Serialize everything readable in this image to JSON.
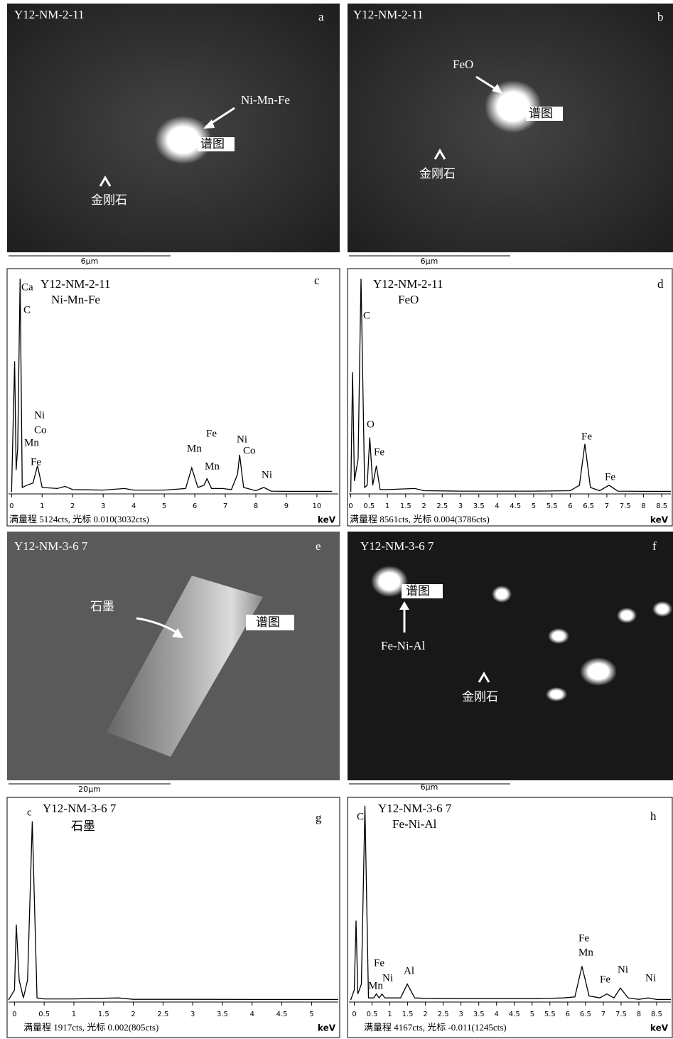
{
  "images": [
    {
      "sample": "Y12-NM-2-11",
      "letter": "a",
      "labels": [
        "Ni-Mn-Fe",
        "谱图",
        "金刚石"
      ],
      "scale": "6μm"
    },
    {
      "sample": "Y12-NM-2-11",
      "letter": "b",
      "labels": [
        "FeO",
        "谱图",
        "金刚石"
      ],
      "scale": "6μm"
    },
    {
      "sample": "Y12-NM-3-6 7",
      "letter": "e",
      "labels": [
        "石墨",
        "谱图"
      ],
      "scale": "20μm"
    },
    {
      "sample": "Y12-NM-3-6 7",
      "letter": "f",
      "labels": [
        "谱图",
        "Fe-Ni-Al",
        "金刚石"
      ],
      "scale": "6μm"
    }
  ],
  "chart_data": [
    {
      "type": "line",
      "sample": "Y12-NM-2-11",
      "phase": "Ni-Mn-Fe",
      "letter": "c",
      "color": "#000000",
      "x_label": "keV",
      "footer": "满量程 5124cts, 光标 0.010(3032cts)",
      "x": [
        0,
        0.05,
        0.1,
        0.15,
        0.2,
        0.28,
        0.35,
        0.5,
        0.7,
        0.85,
        1.0,
        1.5,
        1.75,
        2.0,
        3.0,
        3.7,
        4.0,
        5.0,
        5.7,
        5.9,
        6.1,
        6.3,
        6.4,
        6.55,
        6.9,
        7.2,
        7.4,
        7.47,
        7.6,
        8.0,
        8.26,
        8.5,
        9,
        10,
        10.5
      ],
      "values": [
        0,
        30,
        60,
        10,
        20,
        98,
        2,
        3,
        4,
        12,
        2,
        1.5,
        2.5,
        1,
        0.8,
        1.5,
        0.8,
        0.8,
        1.5,
        11,
        2,
        3,
        6,
        1.5,
        1.5,
        1,
        8,
        17,
        2,
        0.5,
        2,
        0.3,
        0.2,
        0.2,
        0.2
      ],
      "xlim": [
        -0.1,
        10.7
      ],
      "ylim": [
        0,
        100
      ],
      "xticks": [
        0,
        1,
        2,
        3,
        4,
        5,
        6,
        7,
        8,
        9,
        10
      ],
      "annotations": [
        "Ca",
        "C",
        "Ni",
        "Co",
        "Mn",
        "Fe",
        "Mn",
        "Fe",
        "Mn",
        "Ni",
        "Co",
        "Ni"
      ]
    },
    {
      "type": "line",
      "sample": "Y12-NM-2-11",
      "phase": "FeO",
      "letter": "d",
      "color": "#000000",
      "x_label": "keV",
      "footer": "满量程 8561cts, 光标 0.004(3786cts)",
      "x": [
        0,
        0.05,
        0.1,
        0.2,
        0.28,
        0.38,
        0.45,
        0.52,
        0.6,
        0.7,
        0.8,
        1.0,
        1.75,
        2,
        3,
        4,
        5,
        6,
        6.25,
        6.4,
        6.55,
        6.8,
        7.06,
        7.3,
        8,
        8.75
      ],
      "values": [
        0,
        55,
        5,
        15,
        98,
        2,
        3,
        25,
        3,
        12,
        1,
        1,
        1.5,
        0.5,
        0.3,
        0.3,
        0.3,
        0.5,
        3,
        22,
        2,
        0.5,
        3,
        0.3,
        0.2,
        0.2
      ],
      "xlim": [
        -0.05,
        8.75
      ],
      "ylim": [
        0,
        100
      ],
      "xticks": [
        0,
        0.5,
        1,
        1.5,
        2,
        2.5,
        3,
        3.5,
        4,
        4.5,
        5,
        5.5,
        6,
        6.5,
        7,
        7.5,
        8,
        8.5
      ],
      "annotations": [
        "C",
        "O",
        "Fe",
        "Fe",
        "Fe"
      ]
    },
    {
      "type": "line",
      "sample": "Y12-NM-3-6 7",
      "phase": "石墨",
      "letter": "g",
      "color": "#000000",
      "x_label": "keV",
      "footer": "满量程 1917cts, 光标 0.002(805cts)",
      "x": [
        -0.1,
        0,
        0.03,
        0.08,
        0.15,
        0.22,
        0.3,
        0.38,
        0.5,
        1,
        1.75,
        2,
        3,
        4,
        5,
        5.45
      ],
      "values": [
        0,
        5,
        38,
        10,
        1,
        10,
        90,
        1,
        0.5,
        0.5,
        1,
        0.3,
        0.3,
        0.2,
        0.2,
        0.2
      ],
      "xlim": [
        -0.1,
        5.45
      ],
      "ylim": [
        0,
        100
      ],
      "xticks": [
        0,
        0.5,
        1,
        1.5,
        2,
        2.5,
        3,
        3.5,
        4,
        4.5,
        5
      ],
      "annotations": [
        "c"
      ]
    },
    {
      "type": "line",
      "sample": "Y12-NM-3-6 7",
      "phase": "Fe-Ni-Al",
      "letter": "h",
      "color": "#000000",
      "x_label": "keV",
      "footer": "满量程 4167cts, 光标 -0.011(1245cts)",
      "x": [
        -0.1,
        0,
        0.05,
        0.1,
        0.2,
        0.3,
        0.4,
        0.55,
        0.62,
        0.7,
        0.78,
        0.86,
        1,
        1.3,
        1.49,
        1.7,
        2,
        3,
        4,
        5,
        5.9,
        6.2,
        6.4,
        6.6,
        6.9,
        7.1,
        7.3,
        7.48,
        7.7,
        8,
        8.26,
        8.5,
        8.9
      ],
      "values": [
        0,
        5,
        40,
        3,
        8,
        98,
        1,
        1,
        3,
        1,
        3,
        1,
        1,
        1,
        8,
        1,
        0.8,
        0.6,
        0.6,
        0.6,
        1,
        1.5,
        17,
        2,
        1,
        3,
        1,
        6,
        1,
        0.3,
        1,
        0.2,
        0.2
      ],
      "xlim": [
        -0.15,
        8.9
      ],
      "ylim": [
        0,
        100
      ],
      "xticks": [
        0,
        0.5,
        1,
        1.5,
        2,
        2.5,
        3,
        3.5,
        4,
        4.5,
        5,
        5.5,
        6,
        6.5,
        7,
        7.5,
        8,
        8.5
      ],
      "annotations": [
        "C",
        "Fe",
        "Mn",
        "Ni",
        "Al",
        "Fe",
        "Mn",
        "Fe",
        "Ni",
        "Ni"
      ]
    }
  ]
}
